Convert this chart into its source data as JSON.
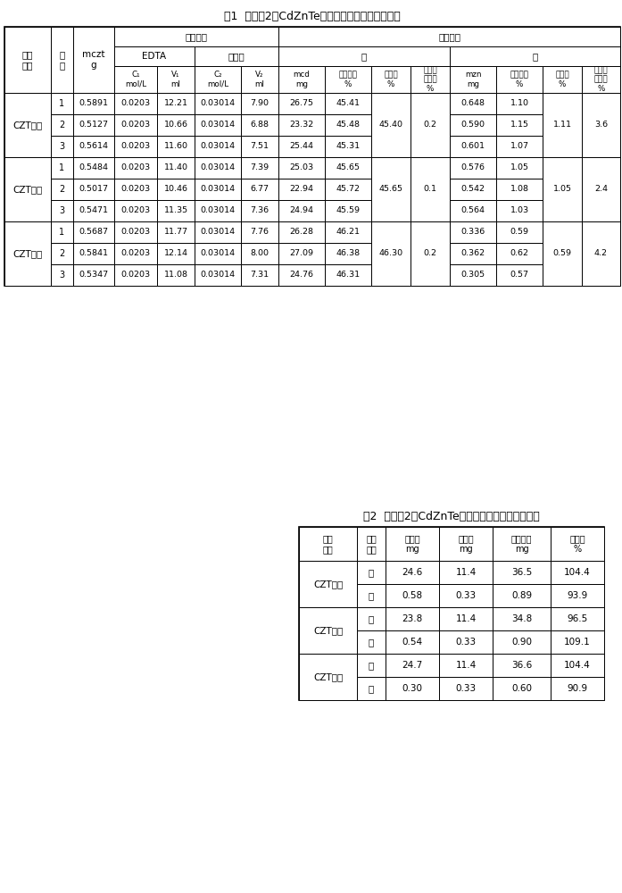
{
  "title1": "表1  实施例2中CdZnTe样品的测试参数及测定结果",
  "title2": "表2  实施例2中CdZnTe样品加标回收的参数及结果",
  "table1_sample_groups": [
    {
      "name": "CZT头部",
      "rows": [
        [
          "1",
          "0.5891",
          "0.0203",
          "12.21",
          "0.03014",
          "7.90",
          "26.75",
          "45.41",
          "45.40",
          "0.2",
          "0.648",
          "1.10",
          "1.11",
          "3.6"
        ],
        [
          "2",
          "0.5127",
          "0.0203",
          "10.66",
          "0.03014",
          "6.88",
          "23.32",
          "45.48",
          "",
          "",
          "0.590",
          "1.15",
          "",
          ""
        ],
        [
          "3",
          "0.5614",
          "0.0203",
          "11.60",
          "0.03014",
          "7.51",
          "25.44",
          "45.31",
          "",
          "",
          "0.601",
          "1.07",
          "",
          ""
        ]
      ]
    },
    {
      "name": "CZT中部",
      "rows": [
        [
          "1",
          "0.5484",
          "0.0203",
          "11.40",
          "0.03014",
          "7.39",
          "25.03",
          "45.65",
          "45.65",
          "0.1",
          "0.576",
          "1.05",
          "1.05",
          "2.4"
        ],
        [
          "2",
          "0.5017",
          "0.0203",
          "10.46",
          "0.03014",
          "6.77",
          "22.94",
          "45.72",
          "",
          "",
          "0.542",
          "1.08",
          "",
          ""
        ],
        [
          "3",
          "0.5471",
          "0.0203",
          "11.35",
          "0.03014",
          "7.36",
          "24.94",
          "45.59",
          "",
          "",
          "0.564",
          "1.03",
          "",
          ""
        ]
      ]
    },
    {
      "name": "CZT尾部",
      "rows": [
        [
          "1",
          "0.5687",
          "0.0203",
          "11.77",
          "0.03014",
          "7.76",
          "26.28",
          "46.21",
          "46.30",
          "0.2",
          "0.336",
          "0.59",
          "0.59",
          "4.2"
        ],
        [
          "2",
          "0.5841",
          "0.0203",
          "12.14",
          "0.03014",
          "8.00",
          "27.09",
          "46.38",
          "",
          "",
          "0.362",
          "0.62",
          "",
          ""
        ],
        [
          "3",
          "0.5347",
          "0.0203",
          "11.08",
          "0.03014",
          "7.31",
          "24.76",
          "46.31",
          "",
          "",
          "0.305",
          "0.57",
          "",
          ""
        ]
      ]
    }
  ],
  "table2_rows": [
    [
      "CZT头部",
      "镉",
      "24.6",
      "11.4",
      "36.5",
      "104.4"
    ],
    [
      "CZT头部",
      "锌",
      "0.58",
      "0.33",
      "0.89",
      "93.9"
    ],
    [
      "CZT中部",
      "镉",
      "23.8",
      "11.4",
      "34.8",
      "96.5"
    ],
    [
      "CZT中部",
      "锌",
      "0.54",
      "0.33",
      "0.90",
      "109.1"
    ],
    [
      "CZT尾部",
      "镉",
      "24.7",
      "11.4",
      "36.6",
      "104.4"
    ],
    [
      "CZT尾部",
      "锌",
      "0.30",
      "0.33",
      "0.60",
      "90.9"
    ]
  ],
  "bg_color": "#ffffff",
  "line_color": "#000000",
  "font_size_title": 8.5,
  "font_size_header": 7.0,
  "font_size_data": 6.8
}
